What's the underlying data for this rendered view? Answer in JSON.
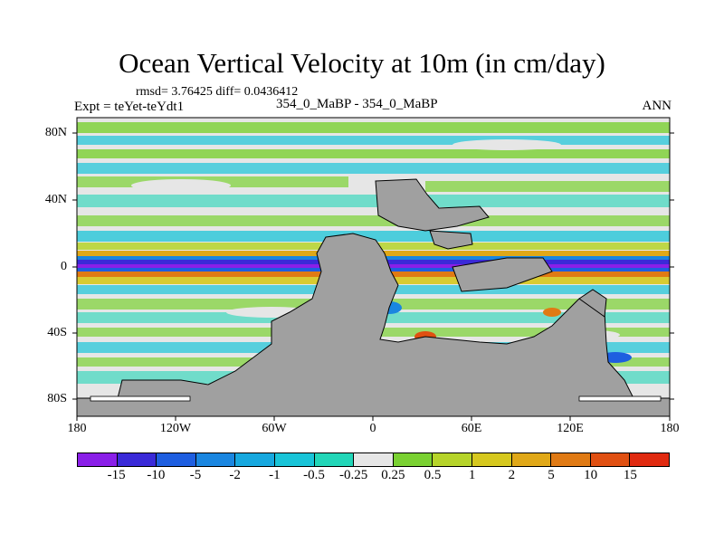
{
  "title": "Ocean Vertical Velocity at 10m (in cm/day)",
  "stats": "rmsd= 3.76425  diff= 0.0436412",
  "experiment": "Expt = teYet-teYdt1",
  "case": "354_0_MaBP - 354_0_MaBP",
  "season": "ANN",
  "lat_ticks": [
    "80N",
    "40N",
    "0",
    "40S",
    "80S"
  ],
  "lon_ticks": [
    "180",
    "120W",
    "60W",
    "0",
    "60E",
    "120E",
    "180"
  ],
  "colorbar": {
    "labels": [
      "-15",
      "-10",
      "-5",
      "-2",
      "-1",
      "-0.5",
      "-0.25",
      "0.25",
      "0.5",
      "1",
      "2",
      "5",
      "10",
      "15"
    ],
    "colors": [
      "#8a1fe8",
      "#3a2ad8",
      "#1e5ee0",
      "#1a86e0",
      "#17a8df",
      "#19c4d8",
      "#22d6b8",
      "#e6e6e6",
      "#7ad132",
      "#b6d42a",
      "#d6c81e",
      "#e0a818",
      "#e07a14",
      "#e05012",
      "#e02a10"
    ]
  },
  "land_color": "#a0a0a0"
}
